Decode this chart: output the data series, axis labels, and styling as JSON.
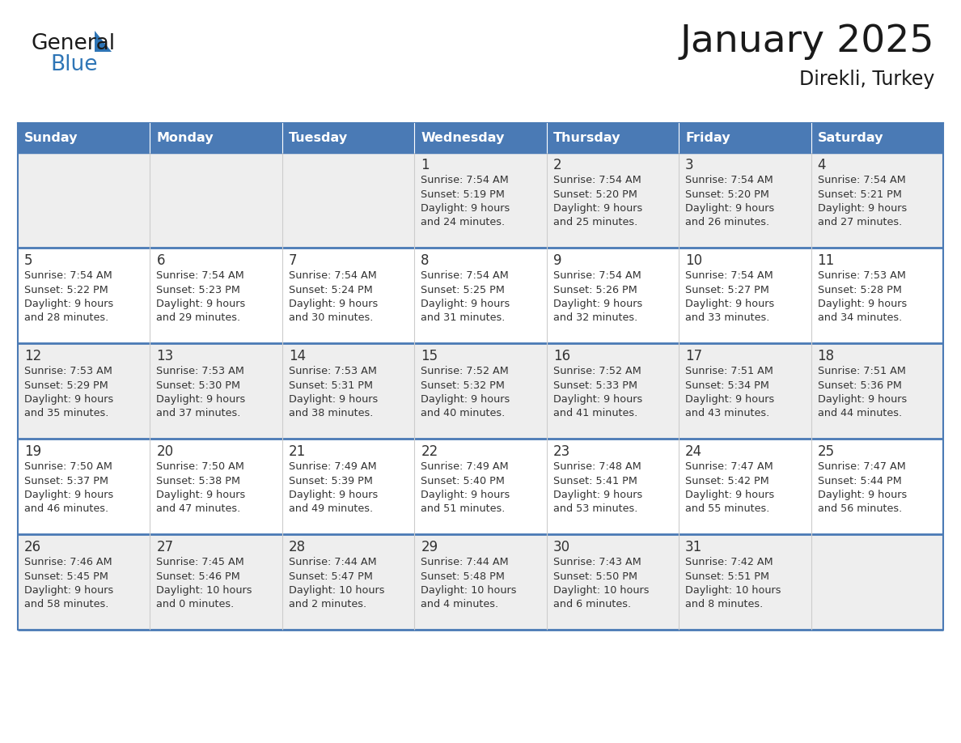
{
  "title": "January 2025",
  "subtitle": "Direkli, Turkey",
  "days_of_week": [
    "Sunday",
    "Monday",
    "Tuesday",
    "Wednesday",
    "Thursday",
    "Friday",
    "Saturday"
  ],
  "header_bg": "#4a7ab5",
  "header_text": "#ffffff",
  "cell_bg_odd": "#eeeeee",
  "cell_bg_even": "#ffffff",
  "border_color": "#4a7ab5",
  "text_color": "#333333",
  "title_color": "#1a1a1a",
  "logo_color_general": "#1a1a1a",
  "logo_color_blue": "#2e75b6",
  "logo_triangle_color": "#2e75b6",
  "calendar_data": [
    [
      null,
      null,
      null,
      {
        "day": 1,
        "sunrise": "7:54 AM",
        "sunset": "5:19 PM",
        "daylight": "9 hours",
        "daylight2": "and 24 minutes."
      },
      {
        "day": 2,
        "sunrise": "7:54 AM",
        "sunset": "5:20 PM",
        "daylight": "9 hours",
        "daylight2": "and 25 minutes."
      },
      {
        "day": 3,
        "sunrise": "7:54 AM",
        "sunset": "5:20 PM",
        "daylight": "9 hours",
        "daylight2": "and 26 minutes."
      },
      {
        "day": 4,
        "sunrise": "7:54 AM",
        "sunset": "5:21 PM",
        "daylight": "9 hours",
        "daylight2": "and 27 minutes."
      }
    ],
    [
      {
        "day": 5,
        "sunrise": "7:54 AM",
        "sunset": "5:22 PM",
        "daylight": "9 hours",
        "daylight2": "and 28 minutes."
      },
      {
        "day": 6,
        "sunrise": "7:54 AM",
        "sunset": "5:23 PM",
        "daylight": "9 hours",
        "daylight2": "and 29 minutes."
      },
      {
        "day": 7,
        "sunrise": "7:54 AM",
        "sunset": "5:24 PM",
        "daylight": "9 hours",
        "daylight2": "and 30 minutes."
      },
      {
        "day": 8,
        "sunrise": "7:54 AM",
        "sunset": "5:25 PM",
        "daylight": "9 hours",
        "daylight2": "and 31 minutes."
      },
      {
        "day": 9,
        "sunrise": "7:54 AM",
        "sunset": "5:26 PM",
        "daylight": "9 hours",
        "daylight2": "and 32 minutes."
      },
      {
        "day": 10,
        "sunrise": "7:54 AM",
        "sunset": "5:27 PM",
        "daylight": "9 hours",
        "daylight2": "and 33 minutes."
      },
      {
        "day": 11,
        "sunrise": "7:53 AM",
        "sunset": "5:28 PM",
        "daylight": "9 hours",
        "daylight2": "and 34 minutes."
      }
    ],
    [
      {
        "day": 12,
        "sunrise": "7:53 AM",
        "sunset": "5:29 PM",
        "daylight": "9 hours",
        "daylight2": "and 35 minutes."
      },
      {
        "day": 13,
        "sunrise": "7:53 AM",
        "sunset": "5:30 PM",
        "daylight": "9 hours",
        "daylight2": "and 37 minutes."
      },
      {
        "day": 14,
        "sunrise": "7:53 AM",
        "sunset": "5:31 PM",
        "daylight": "9 hours",
        "daylight2": "and 38 minutes."
      },
      {
        "day": 15,
        "sunrise": "7:52 AM",
        "sunset": "5:32 PM",
        "daylight": "9 hours",
        "daylight2": "and 40 minutes."
      },
      {
        "day": 16,
        "sunrise": "7:52 AM",
        "sunset": "5:33 PM",
        "daylight": "9 hours",
        "daylight2": "and 41 minutes."
      },
      {
        "day": 17,
        "sunrise": "7:51 AM",
        "sunset": "5:34 PM",
        "daylight": "9 hours",
        "daylight2": "and 43 minutes."
      },
      {
        "day": 18,
        "sunrise": "7:51 AM",
        "sunset": "5:36 PM",
        "daylight": "9 hours",
        "daylight2": "and 44 minutes."
      }
    ],
    [
      {
        "day": 19,
        "sunrise": "7:50 AM",
        "sunset": "5:37 PM",
        "daylight": "9 hours",
        "daylight2": "and 46 minutes."
      },
      {
        "day": 20,
        "sunrise": "7:50 AM",
        "sunset": "5:38 PM",
        "daylight": "9 hours",
        "daylight2": "and 47 minutes."
      },
      {
        "day": 21,
        "sunrise": "7:49 AM",
        "sunset": "5:39 PM",
        "daylight": "9 hours",
        "daylight2": "and 49 minutes."
      },
      {
        "day": 22,
        "sunrise": "7:49 AM",
        "sunset": "5:40 PM",
        "daylight": "9 hours",
        "daylight2": "and 51 minutes."
      },
      {
        "day": 23,
        "sunrise": "7:48 AM",
        "sunset": "5:41 PM",
        "daylight": "9 hours",
        "daylight2": "and 53 minutes."
      },
      {
        "day": 24,
        "sunrise": "7:47 AM",
        "sunset": "5:42 PM",
        "daylight": "9 hours",
        "daylight2": "and 55 minutes."
      },
      {
        "day": 25,
        "sunrise": "7:47 AM",
        "sunset": "5:44 PM",
        "daylight": "9 hours",
        "daylight2": "and 56 minutes."
      }
    ],
    [
      {
        "day": 26,
        "sunrise": "7:46 AM",
        "sunset": "5:45 PM",
        "daylight": "9 hours",
        "daylight2": "and 58 minutes."
      },
      {
        "day": 27,
        "sunrise": "7:45 AM",
        "sunset": "5:46 PM",
        "daylight": "10 hours",
        "daylight2": "and 0 minutes."
      },
      {
        "day": 28,
        "sunrise": "7:44 AM",
        "sunset": "5:47 PM",
        "daylight": "10 hours",
        "daylight2": "and 2 minutes."
      },
      {
        "day": 29,
        "sunrise": "7:44 AM",
        "sunset": "5:48 PM",
        "daylight": "10 hours",
        "daylight2": "and 4 minutes."
      },
      {
        "day": 30,
        "sunrise": "7:43 AM",
        "sunset": "5:50 PM",
        "daylight": "10 hours",
        "daylight2": "and 6 minutes."
      },
      {
        "day": 31,
        "sunrise": "7:42 AM",
        "sunset": "5:51 PM",
        "daylight": "10 hours",
        "daylight2": "and 8 minutes."
      },
      null
    ]
  ]
}
